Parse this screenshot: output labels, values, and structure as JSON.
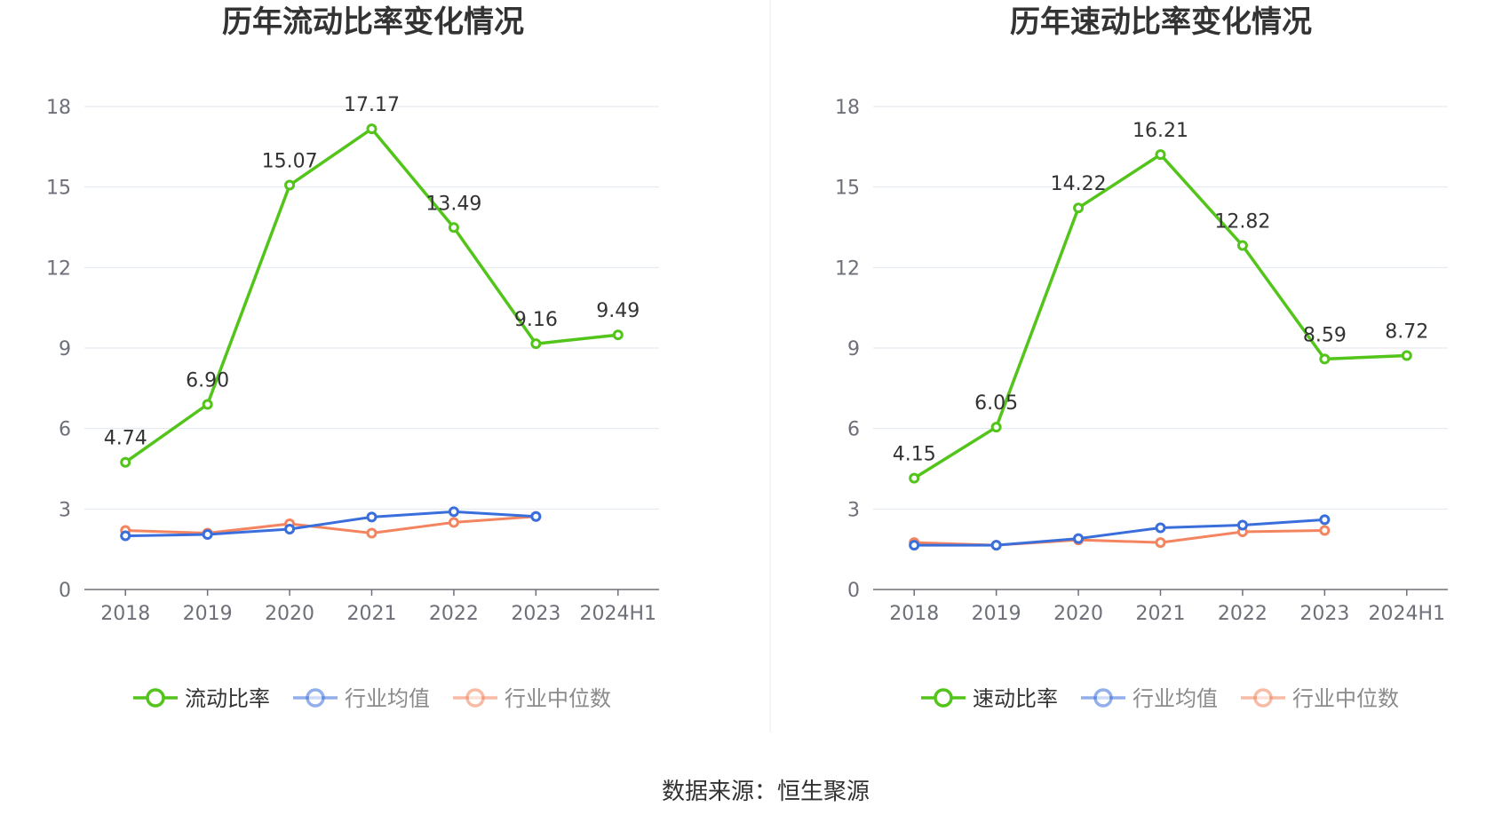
{
  "chart_data": [
    {
      "type": "line",
      "title": "历年流动比率变化情况",
      "categories": [
        "2018",
        "2019",
        "2020",
        "2021",
        "2022",
        "2023",
        "2024H1"
      ],
      "ylim": [
        0,
        18
      ],
      "yticks": [
        0,
        3,
        6,
        9,
        12,
        15,
        18
      ],
      "grid": true,
      "legend_position": "bottom",
      "series": [
        {
          "name": "流动比率",
          "color": "#52c41a",
          "values": [
            4.74,
            6.9,
            15.07,
            17.17,
            13.49,
            9.16,
            9.49
          ],
          "labels": [
            "4.74",
            "6.90",
            "15.07",
            "17.17",
            "13.49",
            "9.16",
            "9.49"
          ]
        },
        {
          "name": "行业均值",
          "color": "#3a6fdb",
          "values": [
            2.0,
            2.05,
            2.25,
            2.7,
            2.9,
            2.72,
            null
          ]
        },
        {
          "name": "行业中位数",
          "color": "#f4845f",
          "values": [
            2.2,
            2.1,
            2.45,
            2.1,
            2.5,
            2.72,
            null
          ]
        }
      ]
    },
    {
      "type": "line",
      "title": "历年速动比率变化情况",
      "categories": [
        "2018",
        "2019",
        "2020",
        "2021",
        "2022",
        "2023",
        "2024H1"
      ],
      "ylim": [
        0,
        18
      ],
      "yticks": [
        0,
        3,
        6,
        9,
        12,
        15,
        18
      ],
      "grid": true,
      "legend_position": "bottom",
      "series": [
        {
          "name": "速动比率",
          "color": "#52c41a",
          "values": [
            4.15,
            6.05,
            14.22,
            16.21,
            12.82,
            8.59,
            8.72
          ],
          "labels": [
            "4.15",
            "6.05",
            "14.22",
            "16.21",
            "12.82",
            "8.59",
            "8.72"
          ]
        },
        {
          "name": "行业均值",
          "color": "#3a6fdb",
          "values": [
            1.65,
            1.65,
            1.9,
            2.3,
            2.4,
            2.6,
            null
          ]
        },
        {
          "name": "行业中位数",
          "color": "#f4845f",
          "values": [
            1.75,
            1.65,
            1.85,
            1.75,
            2.15,
            2.2,
            null
          ]
        }
      ]
    }
  ],
  "footer": {
    "source_text": "数据来源：恒生聚源"
  }
}
